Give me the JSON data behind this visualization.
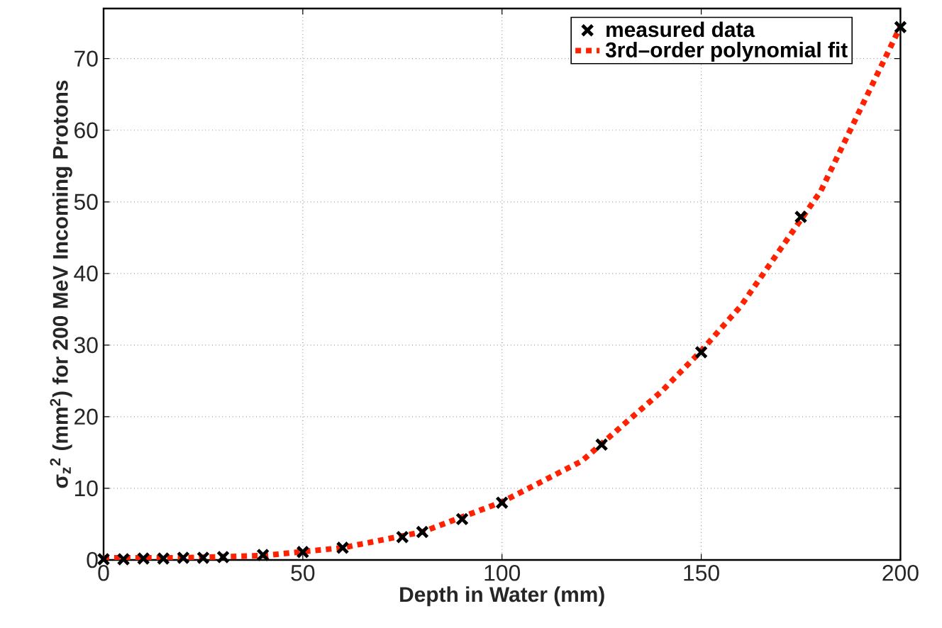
{
  "chart_data": {
    "type": "scatter",
    "xlabel": "Depth in Water (mm)",
    "ylabel": "σ$_{z}$$^{2}$ (mm$^{2}$) for 200 MeV Incoming Protons",
    "xlim": [
      0,
      200
    ],
    "ylim": [
      0,
      77
    ],
    "xticks": [
      0,
      50,
      100,
      150,
      200
    ],
    "yticks": [
      0,
      10,
      20,
      30,
      40,
      50,
      60,
      70
    ],
    "grid": true,
    "legend": "top right",
    "series": [
      {
        "name": "measured data",
        "marker": "cross",
        "color": "#000000",
        "x": [
          0,
          5,
          10,
          15,
          20,
          25,
          30,
          40,
          50,
          60,
          75,
          80,
          90,
          100,
          125,
          150,
          175,
          200
        ],
        "values": [
          0.1,
          0.1,
          0.2,
          0.2,
          0.3,
          0.3,
          0.4,
          0.7,
          1.1,
          1.7,
          3.2,
          3.9,
          5.7,
          8.0,
          16.1,
          29.0,
          47.9,
          74.4
        ]
      },
      {
        "name": "3rd–order polynomial fit",
        "type": "line",
        "line_style": "dotted",
        "color": "#ff2200",
        "x": [
          0,
          20,
          40,
          60,
          80,
          100,
          120,
          140,
          150,
          160,
          180,
          200
        ],
        "values": [
          0.3,
          0.3,
          0.6,
          1.7,
          3.9,
          8.1,
          13.8,
          23.5,
          29.2,
          35.5,
          51.5,
          74.5
        ]
      }
    ]
  }
}
